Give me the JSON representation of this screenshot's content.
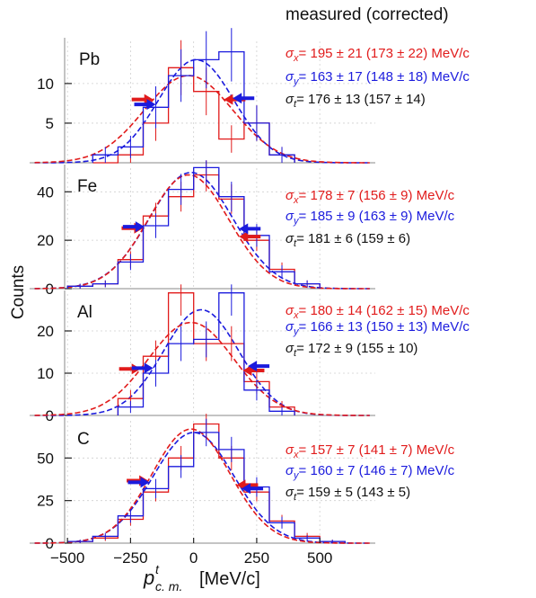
{
  "header": "measured (corrected)",
  "ylabel": "Counts",
  "xlabel_base": "p",
  "xlabel_sup": "t",
  "xlabel_sub": "c. m.",
  "xlabel_unit": "[MeV/c]",
  "colors": {
    "x": "#e11b1b",
    "y": "#1b1bdd",
    "t": "#111111"
  },
  "x_axis": {
    "range": [
      -650,
      720
    ],
    "ticks": [
      -500,
      -250,
      0,
      250,
      500
    ],
    "tick_labels": [
      "−500",
      "−250",
      "0",
      "250",
      "500"
    ]
  },
  "chart_data": [
    {
      "type": "histogram",
      "name": "Pb",
      "ylim": [
        0,
        16
      ],
      "yticks": [
        5,
        10
      ],
      "bins": [
        -400,
        -300,
        -200,
        -100,
        0,
        100,
        200,
        300,
        400
      ],
      "series_x": [
        0,
        1,
        5,
        12,
        9,
        3,
        5,
        1
      ],
      "series_y": [
        1,
        2,
        7,
        11,
        13,
        14,
        5,
        1
      ],
      "fit_x": {
        "amp": 11,
        "mean": -20,
        "sigma": 175
      },
      "fit_y": {
        "amp": 13,
        "mean": 10,
        "sigma": 150
      },
      "arrows_x": [
        -160,
        120
      ],
      "arrows_y": [
        -150,
        155
      ],
      "label_x": "σx = 195 ± 21  (173 ± 22) MeV/c",
      "label_y": "σy = 163 ± 17  (148 ± 18) MeV/c",
      "label_t": "σt = 176 ± 13  (157 ± 14)"
    },
    {
      "type": "histogram",
      "name": "Fe",
      "ylim": [
        0,
        52
      ],
      "yticks": [
        0,
        20,
        40
      ],
      "bins": [
        -500,
        -400,
        -300,
        -200,
        -100,
        0,
        100,
        200,
        300,
        400,
        500
      ],
      "series_x": [
        1,
        2,
        12,
        30,
        38,
        47,
        37,
        20,
        8,
        2
      ],
      "series_y": [
        1,
        2,
        11,
        26,
        41,
        50,
        38,
        22,
        7,
        2
      ],
      "fit_x": {
        "amp": 47,
        "mean": -20,
        "sigma": 160
      },
      "fit_y": {
        "amp": 48,
        "mean": -10,
        "sigma": 165
      },
      "arrows_x": [
        -200,
        180
      ],
      "arrows_y": [
        -195,
        180
      ],
      "label_x": "σx = 178 ± 7  (156 ± 9) MeV/c",
      "label_y": "σy = 185 ± 9  (163 ± 9) MeV/c",
      "label_t": "σt = 181 ± 6  (159 ± 6)"
    },
    {
      "type": "histogram",
      "name": "Al",
      "ylim": [
        0,
        30
      ],
      "yticks": [
        0,
        10,
        20
      ],
      "bins": [
        -300,
        -200,
        -100,
        0,
        100,
        200,
        300,
        400
      ],
      "series_x": [
        4,
        14,
        29,
        17,
        17,
        8,
        2
      ],
      "series_y": [
        2,
        10,
        17,
        18,
        29,
        6,
        1
      ],
      "fit_x": {
        "amp": 22,
        "mean": -10,
        "sigma": 170
      },
      "fit_y": {
        "amp": 25,
        "mean": 30,
        "sigma": 150
      },
      "arrows_x": [
        -210,
        195
      ],
      "arrows_y": [
        -160,
        215
      ],
      "label_x": "σx = 180 ± 14  (162 ± 15) MeV/c",
      "label_y": "σy = 166 ± 13  (150 ± 13) MeV/c",
      "label_t": "σt = 172 ± 9  (155 ± 10)"
    },
    {
      "type": "histogram",
      "name": "C",
      "ylim": [
        0,
        75
      ],
      "yticks": [
        0,
        25,
        50
      ],
      "bins": [
        -500,
        -400,
        -300,
        -200,
        -100,
        0,
        100,
        200,
        300,
        400,
        500,
        600
      ],
      "series_x": [
        1,
        3,
        14,
        30,
        50,
        70,
        50,
        30,
        13,
        4,
        1
      ],
      "series_y": [
        1,
        4,
        16,
        32,
        45,
        65,
        55,
        33,
        12,
        3,
        1
      ],
      "fit_x": {
        "amp": 67,
        "mean": -10,
        "sigma": 155
      },
      "fit_y": {
        "amp": 65,
        "mean": 0,
        "sigma": 160
      },
      "arrows_x": [
        -180,
        170
      ],
      "arrows_y": [
        -175,
        190
      ],
      "label_x": "σx = 157 ± 7  (141 ± 7) MeV/c",
      "label_y": "σy = 160 ± 7  (146 ± 7) MeV/c",
      "label_t": "σt = 159 ± 5  (143 ± 5)"
    }
  ]
}
